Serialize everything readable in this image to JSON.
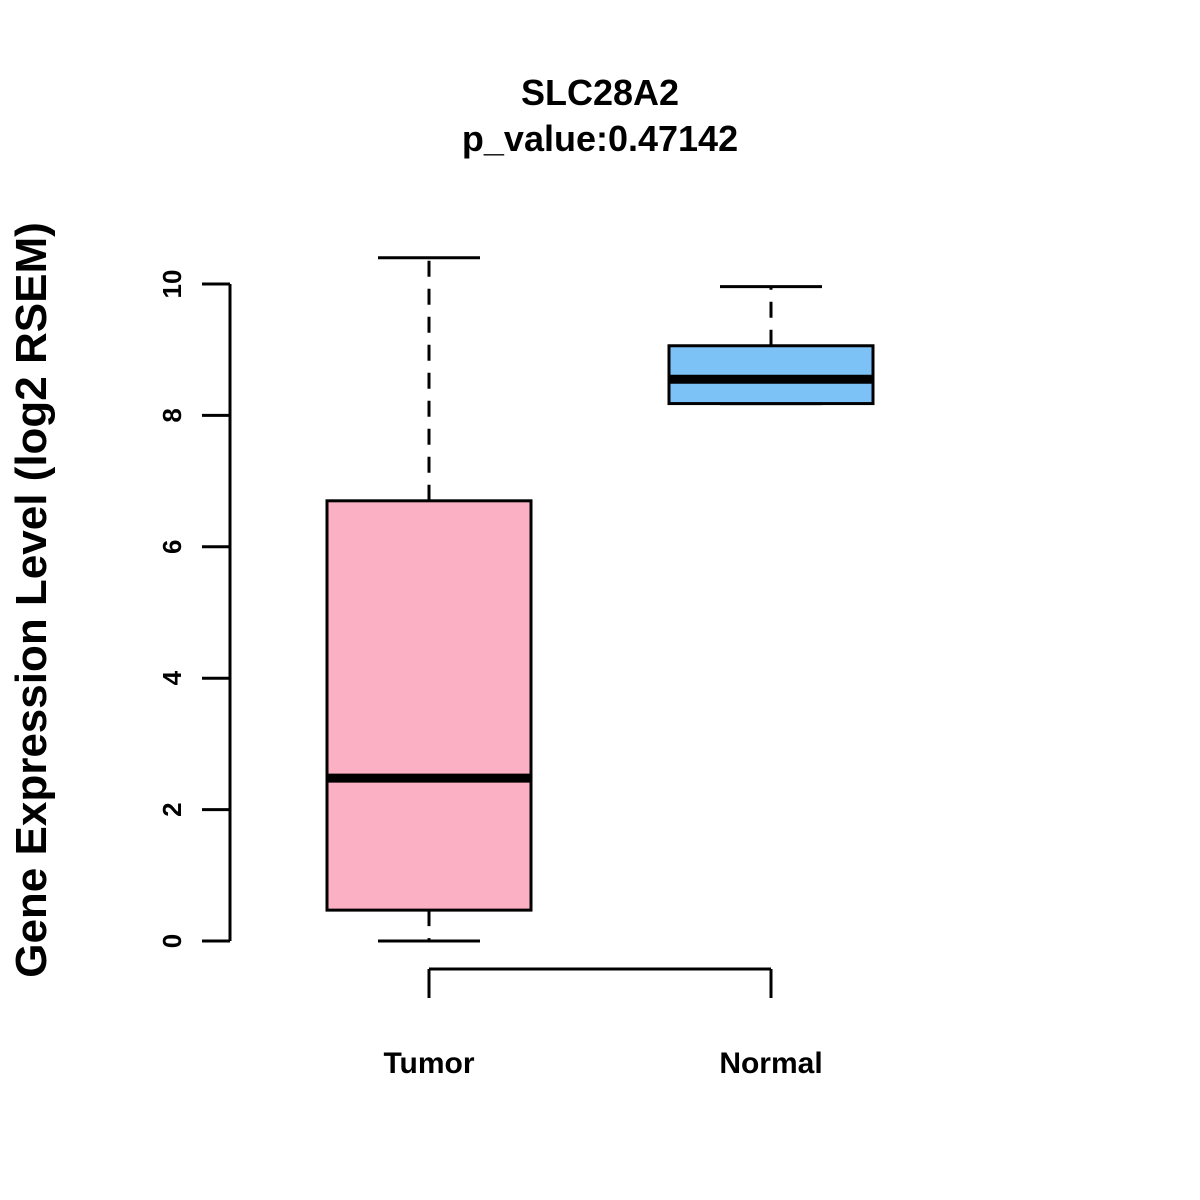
{
  "chart_data": {
    "type": "boxplot",
    "title": "SLC28A2",
    "subtitle": "p_value:0.47142",
    "xlabel": "",
    "ylabel": "Gene Expression Level (log2 RSEM)",
    "ylim": [
      0,
      10.4
    ],
    "yticks": [
      "0",
      "2",
      "4",
      "6",
      "8",
      "10"
    ],
    "categories": [
      "Tumor",
      "Normal"
    ],
    "boxes": [
      {
        "name": "Tumor",
        "min": 0.0,
        "q1": 0.47,
        "median": 2.48,
        "q3": 6.7,
        "max": 10.4,
        "color": "#FBB1C3"
      },
      {
        "name": "Normal",
        "min": 8.18,
        "q1": 8.18,
        "median": 8.55,
        "q3": 9.06,
        "max": 9.96,
        "color": "#7CC2F7"
      }
    ]
  }
}
